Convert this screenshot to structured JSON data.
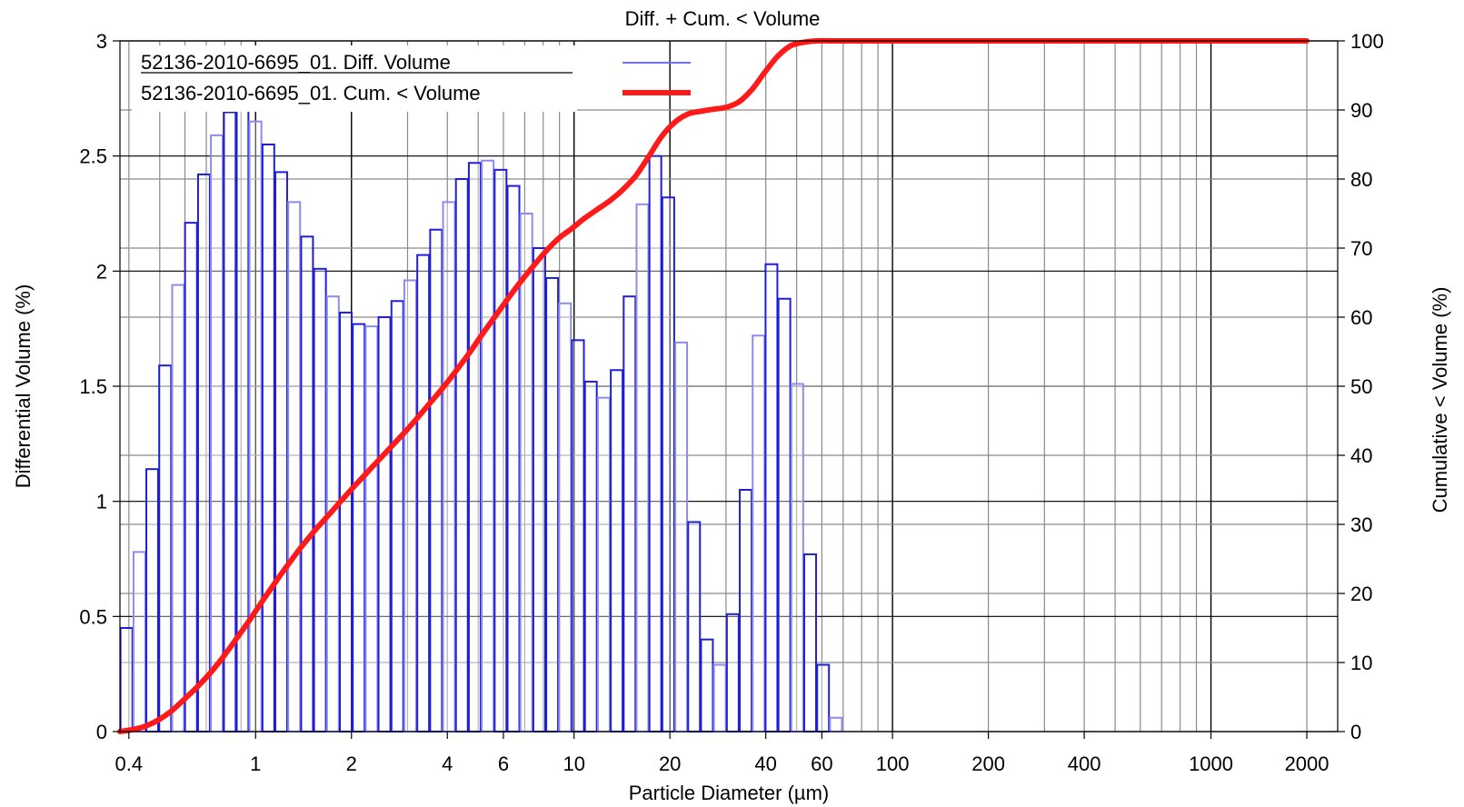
{
  "chart_data": {
    "type": "bar",
    "title": "Diff. + Cum. < Volume",
    "xlabel": "Particle Diameter (µm)",
    "ylabel": "Differential Volume (%)",
    "y2label": "Cumulative < Volume (%)",
    "x_scale": "log",
    "xlim": [
      0.375,
      2500
    ],
    "ylim": [
      0,
      3
    ],
    "y2lim": [
      0,
      100
    ],
    "x_ticks": [
      0.4,
      1,
      2,
      4,
      6,
      10,
      20,
      40,
      60,
      100,
      200,
      400,
      1000,
      2000
    ],
    "y_ticks": [
      0,
      0.5,
      1,
      1.5,
      2,
      2.5,
      3
    ],
    "y2_ticks": [
      0,
      10,
      20,
      30,
      40,
      50,
      60,
      70,
      80,
      90,
      100
    ],
    "grid": true,
    "legend_position": "top-left",
    "colors": {
      "bars": "#1f1fd6",
      "bars_light": "#8c8cf0",
      "cum_line": "#ff1a1a",
      "grid_major": "#000000",
      "grid_minor": "#8a8a8a"
    },
    "series": [
      {
        "name": "52136-2010-6695_01. Diff. Volume",
        "type": "bar",
        "axis": "left",
        "bin_edges": [
          0.375,
          0.412,
          0.452,
          0.496,
          0.545,
          0.598,
          0.657,
          0.721,
          0.791,
          0.869,
          0.953,
          1.047,
          1.149,
          1.261,
          1.385,
          1.52,
          1.669,
          1.832,
          2.011,
          2.208,
          2.423,
          2.66,
          2.92,
          3.206,
          3.519,
          3.863,
          4.24,
          4.655,
          5.11,
          5.61,
          6.158,
          6.76,
          7.421,
          8.147,
          8.943,
          9.817,
          10.78,
          11.83,
          12.99,
          14.26,
          15.65,
          17.18,
          18.86,
          20.71,
          22.73,
          24.95,
          27.39,
          30.07,
          33.01,
          36.24,
          39.78,
          43.67,
          47.94,
          52.62,
          57.77,
          63.41,
          69.61,
          76.42
        ],
        "values": [
          0.45,
          0.78,
          1.14,
          1.59,
          1.94,
          2.21,
          2.42,
          2.59,
          2.69,
          2.7,
          2.65,
          2.55,
          2.43,
          2.3,
          2.15,
          2.01,
          1.89,
          1.82,
          1.77,
          1.76,
          1.8,
          1.87,
          1.96,
          2.07,
          2.18,
          2.3,
          2.4,
          2.47,
          2.48,
          2.44,
          2.37,
          2.25,
          2.1,
          1.97,
          1.86,
          1.7,
          1.52,
          1.45,
          1.57,
          1.89,
          2.29,
          2.5,
          2.32,
          1.69,
          0.91,
          0.4,
          0.29,
          0.51,
          1.05,
          1.72,
          2.03,
          1.88,
          1.51,
          0.77,
          0.29,
          0.06,
          0.0
        ]
      },
      {
        "name": "52136-2010-6695_01. Cum. < Volume",
        "type": "line",
        "axis": "right",
        "x": [
          0.375,
          0.412,
          0.452,
          0.496,
          0.545,
          0.598,
          0.657,
          0.721,
          0.791,
          0.869,
          0.953,
          1.047,
          1.149,
          1.261,
          1.385,
          1.52,
          1.669,
          1.832,
          2.011,
          2.208,
          2.423,
          2.66,
          2.92,
          3.206,
          3.519,
          3.863,
          4.24,
          4.655,
          5.11,
          5.61,
          6.158,
          6.76,
          7.421,
          8.147,
          8.943,
          9.817,
          10.78,
          11.83,
          12.99,
          14.26,
          15.65,
          17.18,
          18.86,
          20.71,
          22.73,
          24.95,
          27.39,
          30.07,
          33.01,
          36.24,
          39.78,
          43.67,
          47.94,
          52.62,
          57.77,
          63.41,
          69.61,
          76.42,
          100,
          200,
          400,
          1000,
          2000
        ],
        "values": [
          0,
          0.3,
          0.8,
          1.7,
          3.0,
          4.7,
          6.5,
          8.5,
          10.8,
          13.4,
          16.0,
          18.8,
          21.5,
          24.1,
          26.6,
          28.9,
          31.0,
          33.1,
          35.2,
          37.2,
          39.2,
          41.2,
          43.2,
          45.3,
          47.5,
          49.7,
          52.1,
          54.6,
          57.3,
          59.9,
          62.5,
          65.0,
          67.3,
          69.5,
          71.4,
          72.8,
          74.3,
          75.6,
          76.9,
          78.5,
          80.5,
          83.3,
          86.2,
          88.2,
          89.4,
          89.8,
          90.1,
          90.4,
          91.2,
          93.0,
          95.5,
          97.8,
          99.3,
          99.8,
          100,
          100,
          100,
          100,
          100,
          100,
          100,
          100,
          100
        ]
      }
    ]
  }
}
